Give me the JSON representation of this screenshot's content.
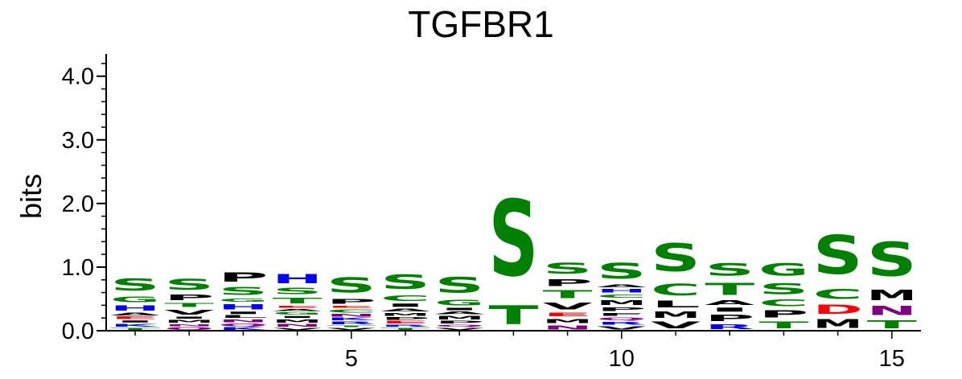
{
  "chart_data": {
    "type": "sequence-logo",
    "title": "TGFBR1",
    "xlabel": "",
    "ylabel": "bits",
    "ylim": [
      0,
      4.3
    ],
    "yticks": [
      "0.0",
      "1.0",
      "2.0",
      "3.0",
      "4.0"
    ],
    "ytick_values": [
      0,
      1,
      2,
      3,
      4
    ],
    "xticks": [
      "5",
      "10",
      "15"
    ],
    "xtick_values": [
      5,
      10,
      15
    ],
    "colors": {
      "S": "#008000",
      "T": "#008000",
      "G": "#008000",
      "C": "#008000",
      "Q": "#800080",
      "N": "#800080",
      "H": "#0000ff",
      "K": "#0000ff",
      "R": "#0000ff",
      "D": "#ff0000",
      "E": "#ff0000",
      "P": "#000000",
      "V": "#000000",
      "A": "#000000",
      "M": "#000000",
      "I": "#000000",
      "L": "#000000",
      "F": "#000000",
      "W": "#000000",
      "Y": "#000000"
    },
    "positions": [
      {
        "pos": 1,
        "letters": [
          [
            "T",
            0.05
          ],
          [
            "K",
            0.07
          ],
          [
            "I",
            0.05
          ],
          [
            "E",
            0.06
          ],
          [
            "A",
            0.06
          ],
          [
            "H",
            0.13
          ],
          [
            "G",
            0.15
          ],
          [
            "S",
            0.3
          ]
        ]
      },
      {
        "pos": 2,
        "letters": [
          [
            "Q",
            0.06
          ],
          [
            "N",
            0.05
          ],
          [
            "M",
            0.07
          ],
          [
            "I",
            0.05
          ],
          [
            "V",
            0.12
          ],
          [
            "T",
            0.1
          ],
          [
            "P",
            0.14
          ],
          [
            "S",
            0.28
          ]
        ]
      },
      {
        "pos": 3,
        "letters": [
          [
            "K",
            0.06
          ],
          [
            "Q",
            0.06
          ],
          [
            "N",
            0.07
          ],
          [
            "L",
            0.06
          ],
          [
            "I",
            0.06
          ],
          [
            "H",
            0.13
          ],
          [
            "G",
            0.08
          ],
          [
            "S",
            0.2
          ],
          [
            "P",
            0.24
          ]
        ]
      },
      {
        "pos": 4,
        "letters": [
          [
            "V",
            0.05
          ],
          [
            "N",
            0.06
          ],
          [
            "M",
            0.08
          ],
          [
            "I",
            0.05
          ],
          [
            "G",
            0.06
          ],
          [
            "A",
            0.05
          ],
          [
            "E",
            0.05
          ],
          [
            "T",
            0.14
          ],
          [
            "S",
            0.16
          ],
          [
            "H",
            0.23
          ]
        ]
      },
      {
        "pos": 5,
        "letters": [
          [
            "V",
            0.05
          ],
          [
            "T",
            0.04
          ],
          [
            "R",
            0.06
          ],
          [
            "K",
            0.06
          ],
          [
            "N",
            0.06
          ],
          [
            "C",
            0.08
          ],
          [
            "E",
            0.05
          ],
          [
            "P",
            0.12
          ],
          [
            "S",
            0.38
          ]
        ]
      },
      {
        "pos": 6,
        "letters": [
          [
            "T",
            0.05
          ],
          [
            "R",
            0.05
          ],
          [
            "E",
            0.06
          ],
          [
            "P",
            0.06
          ],
          [
            "M",
            0.07
          ],
          [
            "A",
            0.07
          ],
          [
            "I",
            0.08
          ],
          [
            "C",
            0.14
          ],
          [
            "S",
            0.37
          ]
        ]
      },
      {
        "pos": 7,
        "letters": [
          [
            "V",
            0.05
          ],
          [
            "Q",
            0.05
          ],
          [
            "P",
            0.06
          ],
          [
            "M",
            0.09
          ],
          [
            "A",
            0.06
          ],
          [
            "I",
            0.06
          ],
          [
            "G",
            0.15
          ],
          [
            "S",
            0.4
          ]
        ]
      },
      {
        "pos": 8,
        "letters": [
          [
            "T",
            0.48
          ],
          [
            "S",
            1.92
          ]
        ]
      },
      {
        "pos": 9,
        "letters": [
          [
            "N",
            0.1
          ],
          [
            "M",
            0.11
          ],
          [
            "E",
            0.09
          ],
          [
            "V",
            0.17
          ],
          [
            "T",
            0.2
          ],
          [
            "P",
            0.17
          ],
          [
            "S",
            0.28
          ]
        ]
      },
      {
        "pos": 10,
        "letters": [
          [
            "V",
            0.08
          ],
          [
            "R",
            0.07
          ],
          [
            "Q",
            0.07
          ],
          [
            "F",
            0.07
          ],
          [
            "P",
            0.09
          ],
          [
            "M",
            0.12
          ],
          [
            "C",
            0.08
          ],
          [
            "H",
            0.09
          ],
          [
            "A",
            0.07
          ],
          [
            "S",
            0.4
          ]
        ]
      },
      {
        "pos": 11,
        "letters": [
          [
            "V",
            0.17
          ],
          [
            "M",
            0.16
          ],
          [
            "L",
            0.17
          ],
          [
            "C",
            0.29
          ],
          [
            "S",
            0.7
          ]
        ]
      },
      {
        "pos": 12,
        "letters": [
          [
            "R",
            0.12
          ],
          [
            "P",
            0.16
          ],
          [
            "I",
            0.1
          ],
          [
            "A",
            0.12
          ],
          [
            "T",
            0.3
          ],
          [
            "S",
            0.32
          ]
        ]
      },
      {
        "pos": 13,
        "letters": [
          [
            "T",
            0.17
          ],
          [
            "P",
            0.18
          ],
          [
            "C",
            0.17
          ],
          [
            "S",
            0.28
          ],
          [
            "G",
            0.32
          ]
        ]
      },
      {
        "pos": 14,
        "letters": [
          [
            "M",
            0.22
          ],
          [
            "D",
            0.23
          ],
          [
            "C",
            0.25
          ],
          [
            "S",
            0.98
          ]
        ]
      },
      {
        "pos": 15,
        "letters": [
          [
            "T",
            0.2
          ],
          [
            "N",
            0.23
          ],
          [
            "M",
            0.26
          ],
          [
            "S",
            0.86
          ]
        ]
      }
    ]
  }
}
